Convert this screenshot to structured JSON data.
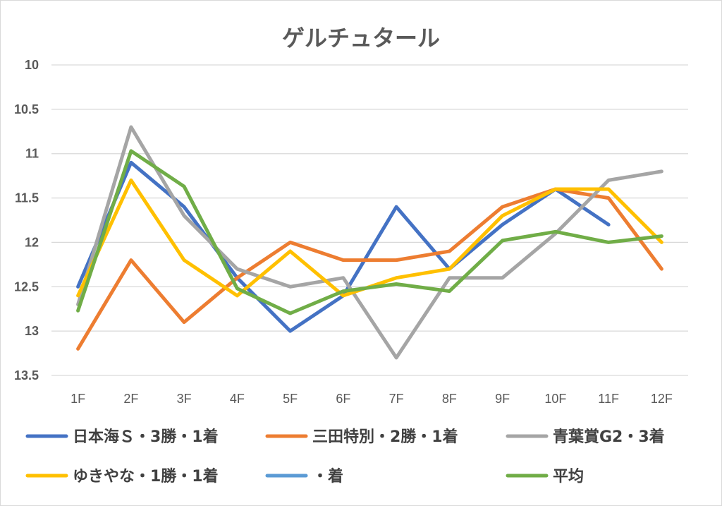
{
  "chart_data": {
    "type": "line",
    "title": "ゲルチュタール",
    "xlabel": "",
    "ylabel": "",
    "categories": [
      "1F",
      "2F",
      "3F",
      "4F",
      "5F",
      "6F",
      "7F",
      "8F",
      "9F",
      "10F",
      "11F",
      "12F"
    ],
    "y_tick_labels": [
      "10",
      "10.5",
      "11",
      "11.5",
      "12",
      "12.5",
      "13",
      "13.5"
    ],
    "ylim": [
      10,
      13.5
    ],
    "y_reversed": true,
    "grid": true,
    "legend_position": "bottom",
    "series": [
      {
        "name": "日本海Ｓ・3勝・1着",
        "color": "#4472c4",
        "values": [
          12.5,
          11.1,
          11.6,
          12.4,
          13.0,
          12.6,
          11.6,
          12.3,
          11.8,
          11.4,
          11.8,
          null
        ]
      },
      {
        "name": "三田特別・2勝・1着",
        "color": "#ed7d31",
        "values": [
          13.2,
          12.2,
          12.9,
          12.4,
          12.0,
          12.2,
          12.2,
          12.1,
          11.6,
          11.4,
          11.5,
          12.3
        ]
      },
      {
        "name": "青葉賞G2・3着",
        "color": "#a5a5a5",
        "values": [
          12.7,
          10.7,
          11.7,
          12.3,
          12.5,
          12.4,
          13.3,
          12.4,
          12.4,
          11.9,
          11.3,
          11.2
        ]
      },
      {
        "name": "ゆきやな・1勝・1着",
        "color": "#ffc000",
        "values": [
          12.6,
          11.3,
          12.2,
          12.6,
          12.1,
          12.6,
          12.4,
          12.3,
          11.7,
          11.4,
          11.4,
          12.0
        ]
      },
      {
        "name": "・着",
        "color": "#5b9bd5",
        "values": [
          null,
          null,
          null,
          null,
          null,
          null,
          null,
          null,
          null,
          null,
          null,
          null
        ]
      },
      {
        "name": "平均",
        "color": "#70ad47",
        "values": [
          12.77,
          10.97,
          11.37,
          12.52,
          12.8,
          12.55,
          12.47,
          12.55,
          11.98,
          11.88,
          12.0,
          11.93
        ]
      }
    ]
  }
}
